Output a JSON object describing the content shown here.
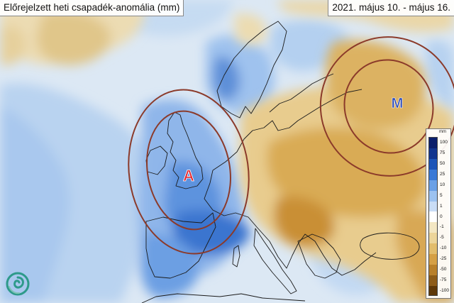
{
  "map": {
    "title": "Előrejelzett heti csapadék-anomália (mm)",
    "period": "2021. május 10. - május 16.",
    "markers": [
      {
        "letter": "A",
        "color": "#e3222a"
      },
      {
        "letter": "M",
        "color": "#1e3fb5"
      }
    ],
    "colors": {
      "positive_anomaly": "#2d6fd6",
      "negative_anomaly": "#d4a040",
      "contour": "#8b3a2a"
    }
  },
  "legend": {
    "unit": "mm",
    "labels": [
      "100",
      "75",
      "50",
      "25",
      "10",
      "5",
      "1",
      "0",
      "-1",
      "-5",
      "-10",
      "-25",
      "-50",
      "-75",
      "-100"
    ],
    "colors": [
      "#0b1f6b",
      "#12358f",
      "#1d55b8",
      "#3a79d6",
      "#6aa0e6",
      "#9cc2f0",
      "#c9ddf6",
      "#ffffff",
      "#f3e7c3",
      "#ecd59a",
      "#e2bd6c",
      "#d5a045",
      "#b8802a",
      "#8d5c18",
      "#5e3808"
    ]
  },
  "logo": {
    "icon": "swirl-logo-icon"
  }
}
